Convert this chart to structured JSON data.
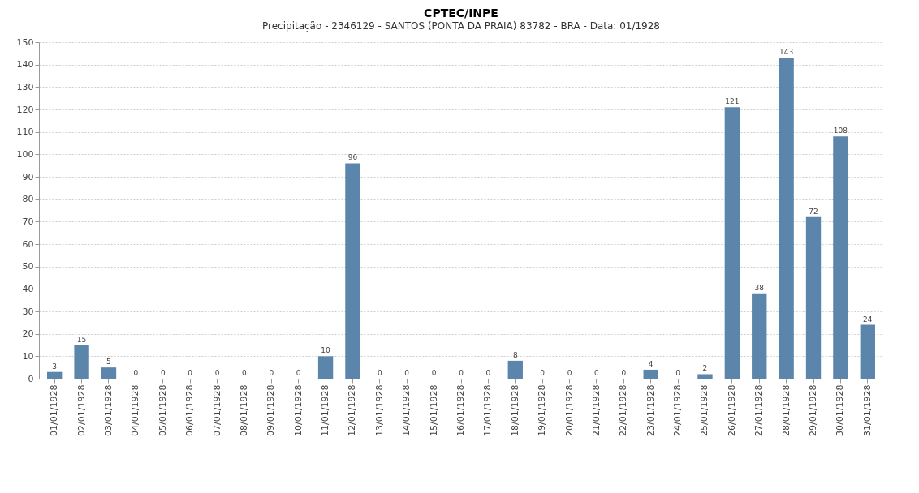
{
  "chart_data": {
    "type": "bar",
    "title": "CPTEC/INPE",
    "subtitle": "Precipitação - 2346129 - SANTOS (PONTA DA PRAIA) 83782 - BRA - Data: 01/1928",
    "categories": [
      "01/01/1928",
      "02/01/1928",
      "03/01/1928",
      "04/01/1928",
      "05/01/1928",
      "06/01/1928",
      "07/01/1928",
      "08/01/1928",
      "09/01/1928",
      "10/01/1928",
      "11/01/1928",
      "12/01/1928",
      "13/01/1928",
      "14/01/1928",
      "15/01/1928",
      "16/01/1928",
      "17/01/1928",
      "18/01/1928",
      "19/01/1928",
      "20/01/1928",
      "21/01/1928",
      "22/01/1928",
      "23/01/1928",
      "24/01/1928",
      "25/01/1928",
      "26/01/1928",
      "27/01/1928",
      "28/01/1928",
      "29/01/1928",
      "30/01/1928",
      "31/01/1928"
    ],
    "values": [
      3,
      15,
      5,
      0,
      0,
      0,
      0,
      0,
      0,
      0,
      10,
      96,
      0,
      0,
      0,
      0,
      0,
      8,
      0,
      0,
      0,
      0,
      4,
      0,
      2,
      121,
      38,
      143,
      72,
      108,
      24
    ],
    "color": "#5b85aa",
    "ylim": [
      0,
      150
    ],
    "yticks": [
      0,
      10,
      20,
      30,
      40,
      50,
      60,
      70,
      80,
      90,
      100,
      110,
      120,
      130,
      140,
      150
    ],
    "grid": "y",
    "data_labels": true
  }
}
